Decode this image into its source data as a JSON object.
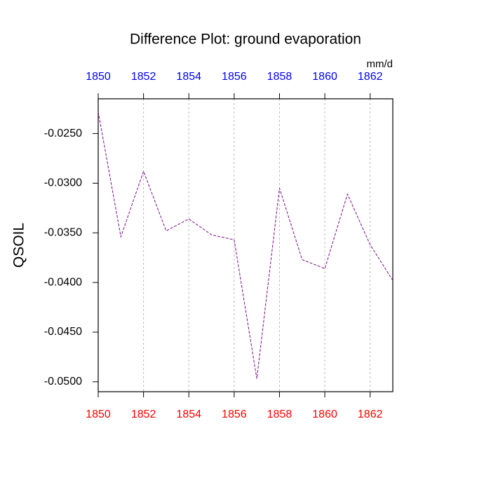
{
  "chart_data": {
    "type": "line",
    "title": "Difference Plot: ground evaporation",
    "units": "mm/d",
    "y_label": "QSOIL",
    "x": [
      1850,
      1851,
      1852,
      1853,
      1854,
      1855,
      1856,
      1857,
      1858,
      1859,
      1860,
      1861,
      1862,
      1863
    ],
    "series": [
      {
        "color": "#7a0a8a",
        "dashed": true,
        "values": [
          -0.0228,
          -0.0354,
          -0.0288,
          -0.0348,
          -0.0336,
          -0.0352,
          -0.0357,
          -0.0497,
          -0.0305,
          -0.0377,
          -0.0386,
          -0.0311,
          -0.0362,
          -0.0398
        ]
      }
    ],
    "xlim": [
      1850,
      1863
    ],
    "xticks": [
      1850,
      1852,
      1854,
      1856,
      1858,
      1860,
      1862
    ],
    "xtick_color": "#ff0000",
    "x2ticks": [
      1850,
      1852,
      1854,
      1856,
      1858,
      1860,
      1862
    ],
    "x2tick_color": "#0000ff",
    "ylim": [
      -0.051,
      -0.0215
    ],
    "yticks": [
      {
        "value": -0.025,
        "label": "-0.0250"
      },
      {
        "value": -0.03,
        "label": "-0.0300"
      },
      {
        "value": -0.035,
        "label": "-0.0350"
      },
      {
        "value": -0.04,
        "label": "-0.0400"
      },
      {
        "value": -0.045,
        "label": "-0.0450"
      },
      {
        "value": -0.05,
        "label": "-0.0500"
      }
    ],
    "grid": "x"
  }
}
